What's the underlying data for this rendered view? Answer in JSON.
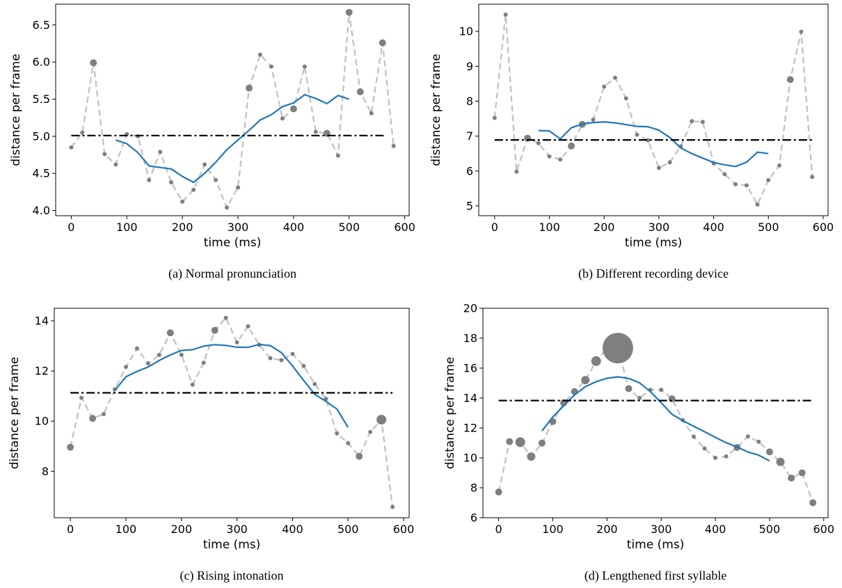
{
  "colors": {
    "dotted_line": "#c4c4c4",
    "marker": "#7f7f7f",
    "smooth_line": "#1f77b4",
    "mean_line": "#000000"
  },
  "chart_data": [
    {
      "id": "a",
      "type": "line",
      "caption": "(a) Normal pronunciation",
      "xlabel": "time (ms)",
      "ylabel": "distance per frame",
      "xlim": [
        -28,
        608
      ],
      "ylim": [
        3.93,
        6.78
      ],
      "xticks": [
        0,
        100,
        200,
        300,
        400,
        500,
        600
      ],
      "yticks": [
        4.0,
        4.5,
        5.0,
        5.5,
        6.0,
        6.5
      ],
      "ytick_labels": [
        "4.0",
        "4.5",
        "5.0",
        "5.5",
        "6.0",
        "6.5"
      ],
      "grid": false,
      "series": [
        {
          "style": "dashed-markers",
          "x": [
            0,
            20,
            40,
            60,
            80,
            100,
            120,
            140,
            160,
            180,
            200,
            220,
            240,
            260,
            280,
            300,
            320,
            340,
            360,
            380,
            400,
            420,
            440,
            460,
            480,
            500,
            520,
            540,
            560,
            580
          ],
          "y": [
            4.85,
            5.05,
            5.99,
            4.76,
            4.62,
            5.03,
            5.0,
            4.41,
            4.79,
            4.38,
            4.12,
            4.28,
            4.62,
            4.41,
            4.04,
            4.31,
            5.65,
            6.1,
            5.94,
            5.24,
            5.37,
            5.94,
            5.06,
            5.04,
            4.74,
            6.67,
            5.6,
            5.31,
            6.26,
            4.87
          ],
          "marker_size": [
            3,
            3,
            5,
            3,
            3,
            3,
            3,
            3,
            3,
            3,
            3,
            3,
            3,
            3,
            3,
            3,
            5,
            3,
            3,
            3,
            5,
            3,
            3,
            5,
            3,
            5,
            5,
            3,
            5,
            3
          ]
        },
        {
          "style": "solid",
          "x": [
            80,
            100,
            120,
            140,
            160,
            180,
            200,
            220,
            240,
            260,
            280,
            300,
            320,
            340,
            360,
            380,
            400,
            420,
            440,
            460,
            480,
            500
          ],
          "y": [
            4.95,
            4.9,
            4.78,
            4.6,
            4.58,
            4.56,
            4.46,
            4.38,
            4.5,
            4.65,
            4.82,
            4.95,
            5.08,
            5.22,
            5.29,
            5.4,
            5.45,
            5.56,
            5.51,
            5.44,
            5.55,
            5.5
          ]
        },
        {
          "style": "dashdot",
          "x": [
            0,
            565
          ],
          "y": [
            5.01,
            5.01
          ]
        }
      ]
    },
    {
      "id": "b",
      "type": "line",
      "caption": "(b) Different recording device",
      "xlabel": "time (ms)",
      "ylabel": "distance per frame",
      "xlim": [
        -29,
        609
      ],
      "ylim": [
        4.72,
        10.78
      ],
      "xticks": [
        0,
        100,
        200,
        300,
        400,
        500,
        600
      ],
      "yticks": [
        5,
        6,
        7,
        8,
        9,
        10
      ],
      "ytick_labels": [
        "5",
        "6",
        "7",
        "8",
        "9",
        "10"
      ],
      "grid": false,
      "series": [
        {
          "style": "dashed-markers",
          "x": [
            0,
            20,
            40,
            60,
            80,
            100,
            120,
            140,
            160,
            180,
            200,
            220,
            240,
            260,
            280,
            300,
            320,
            340,
            360,
            380,
            400,
            420,
            440,
            460,
            480,
            500,
            520,
            540,
            560,
            580
          ],
          "y": [
            7.52,
            10.48,
            5.98,
            6.94,
            6.8,
            6.42,
            6.33,
            6.72,
            7.34,
            7.47,
            8.42,
            8.67,
            8.08,
            7.04,
            6.88,
            6.09,
            6.25,
            6.71,
            7.43,
            7.41,
            6.22,
            5.91,
            5.62,
            5.59,
            5.04,
            5.74,
            6.16,
            8.62,
            9.99,
            5.83
          ],
          "marker_size": [
            3,
            3,
            3,
            5,
            3,
            3,
            3,
            5,
            5,
            3,
            3,
            3,
            3,
            3,
            3,
            3,
            3,
            3,
            3,
            3,
            3,
            3,
            3,
            3,
            3,
            3,
            3,
            5,
            3,
            3
          ]
        },
        {
          "style": "solid",
          "x": [
            80,
            100,
            120,
            140,
            160,
            180,
            200,
            220,
            240,
            260,
            280,
            300,
            320,
            340,
            360,
            380,
            400,
            420,
            440,
            460,
            480,
            500
          ],
          "y": [
            7.16,
            7.15,
            6.92,
            7.24,
            7.34,
            7.39,
            7.41,
            7.38,
            7.33,
            7.28,
            7.27,
            7.17,
            6.96,
            6.66,
            6.5,
            6.37,
            6.24,
            6.18,
            6.13,
            6.25,
            6.54,
            6.5
          ]
        },
        {
          "style": "dashdot",
          "x": [
            0,
            580
          ],
          "y": [
            6.89,
            6.89
          ]
        }
      ]
    },
    {
      "id": "c",
      "type": "line",
      "caption": "(c) Rising intonation",
      "xlabel": "time (ms)",
      "ylabel": "distance per frame",
      "xlim": [
        -29,
        610
      ],
      "ylim": [
        6.15,
        14.5
      ],
      "xticks": [
        0,
        100,
        200,
        300,
        400,
        500,
        600
      ],
      "yticks": [
        8,
        10,
        12,
        14
      ],
      "ytick_labels": [
        "8",
        "10",
        "12",
        "14"
      ],
      "grid": false,
      "series": [
        {
          "style": "dashed-markers",
          "x": [
            0,
            20,
            40,
            60,
            80,
            100,
            120,
            140,
            160,
            180,
            200,
            220,
            240,
            260,
            280,
            300,
            320,
            340,
            360,
            380,
            400,
            420,
            440,
            460,
            480,
            500,
            520,
            540,
            560,
            580
          ],
          "y": [
            8.96,
            10.93,
            10.11,
            10.28,
            11.27,
            12.16,
            12.9,
            12.3,
            12.64,
            13.52,
            12.64,
            11.45,
            12.33,
            13.62,
            14.12,
            13.14,
            13.78,
            13.04,
            12.51,
            12.43,
            12.68,
            12.2,
            11.48,
            10.89,
            9.51,
            9.12,
            8.6,
            9.57,
            10.06,
            6.58
          ],
          "marker_size": [
            5,
            3,
            5,
            3,
            3,
            3,
            3,
            3,
            3,
            5,
            3,
            3,
            3,
            5,
            3,
            3,
            3,
            3,
            3,
            3,
            3,
            3,
            3,
            3,
            3,
            3,
            5,
            3,
            7,
            3
          ]
        },
        {
          "style": "solid",
          "x": [
            80,
            100,
            120,
            140,
            160,
            180,
            200,
            220,
            240,
            260,
            280,
            300,
            320,
            340,
            360,
            380,
            400,
            420,
            440,
            460,
            480,
            500
          ],
          "y": [
            11.22,
            11.77,
            11.98,
            12.16,
            12.42,
            12.64,
            12.82,
            12.85,
            12.99,
            13.05,
            13.02,
            12.95,
            12.94,
            13.06,
            13.01,
            12.73,
            12.2,
            11.62,
            11.07,
            10.79,
            10.48,
            9.75
          ]
        },
        {
          "style": "dashdot",
          "x": [
            0,
            580
          ],
          "y": [
            11.13,
            11.13
          ]
        }
      ]
    },
    {
      "id": "d",
      "type": "line",
      "caption": "(d) Lengthened first syllable",
      "xlabel": "time (ms)",
      "ylabel": "distance per frame",
      "xlim": [
        -29,
        608
      ],
      "ylim": [
        6,
        20
      ],
      "xticks": [
        0,
        100,
        200,
        300,
        400,
        500,
        600
      ],
      "yticks": [
        6,
        8,
        10,
        12,
        14,
        16,
        18,
        20
      ],
      "ytick_labels": [
        "6",
        "8",
        "10",
        "12",
        "14",
        "16",
        "18",
        "20"
      ],
      "grid": false,
      "series": [
        {
          "style": "dashed-markers",
          "x": [
            0,
            20,
            40,
            60,
            80,
            100,
            120,
            140,
            160,
            180,
            200,
            220,
            240,
            260,
            280,
            300,
            320,
            340,
            360,
            380,
            400,
            420,
            440,
            460,
            480,
            500,
            520,
            540,
            560,
            580
          ],
          "y": [
            7.72,
            11.09,
            11.05,
            10.09,
            10.99,
            12.43,
            13.68,
            14.43,
            15.2,
            16.47,
            17.34,
            17.34,
            14.63,
            14.0,
            14.55,
            14.55,
            13.95,
            12.52,
            11.42,
            10.63,
            10.0,
            10.1,
            10.7,
            11.43,
            11.08,
            10.4,
            9.73,
            8.65,
            9.0,
            7.0
          ],
          "marker_size": [
            5,
            5,
            7,
            6,
            5,
            5,
            5,
            5,
            6,
            7,
            3,
            22,
            5,
            3,
            3,
            3,
            5,
            3,
            3,
            3,
            3,
            3,
            5,
            3,
            3,
            5,
            6,
            5,
            5,
            5
          ]
        },
        {
          "style": "solid",
          "x": [
            80,
            100,
            120,
            140,
            160,
            180,
            200,
            220,
            240,
            260,
            280,
            300,
            320,
            340,
            360,
            380,
            400,
            420,
            440,
            460,
            480,
            500
          ],
          "y": [
            11.8,
            12.74,
            13.48,
            14.21,
            14.76,
            15.1,
            15.32,
            15.42,
            15.31,
            15.02,
            14.43,
            13.69,
            12.91,
            12.49,
            12.11,
            11.75,
            11.37,
            11.01,
            10.73,
            10.39,
            10.18,
            9.8
          ]
        },
        {
          "style": "dashdot",
          "x": [
            0,
            580
          ],
          "y": [
            13.83,
            13.83
          ]
        }
      ]
    }
  ]
}
